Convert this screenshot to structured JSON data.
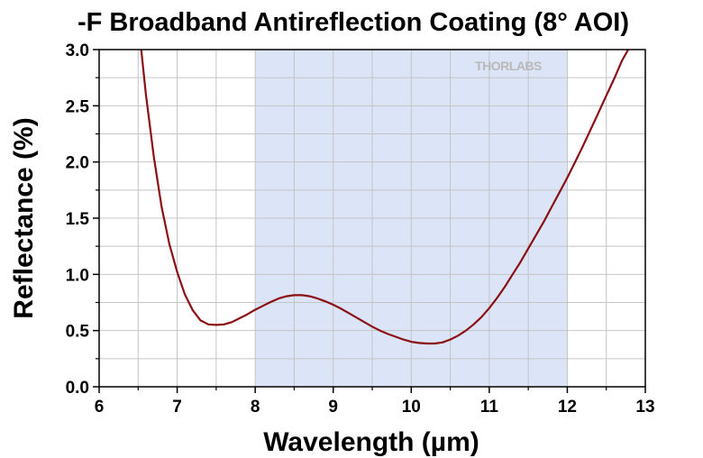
{
  "chart_data": {
    "type": "line",
    "title": "-F Broadband Antireflection Coating (8° AOI)",
    "xlabel": "Wavelength (µm)",
    "ylabel": "Reflectance (%)",
    "xlim": [
      6,
      13
    ],
    "ylim": [
      0.0,
      3.0
    ],
    "xticks": [
      "6",
      "7",
      "8",
      "9",
      "10",
      "11",
      "12",
      "13"
    ],
    "yticks": [
      "0.0",
      "0.5",
      "1.0",
      "1.5",
      "2.0",
      "2.5",
      "3.0"
    ],
    "grid": true,
    "shaded_band": {
      "x_start": 8,
      "x_end": 12,
      "color": "#dce5f7"
    },
    "line_color": "#8b0e14",
    "watermark": "THORLABS",
    "series": [
      {
        "x": [
          6.54,
          6.6,
          6.7,
          6.8,
          6.9,
          7.0,
          7.1,
          7.2,
          7.3,
          7.4,
          7.5,
          7.6,
          7.7,
          7.8,
          7.9,
          8.0,
          8.1,
          8.2,
          8.3,
          8.4,
          8.5,
          8.6,
          8.7,
          8.8,
          8.9,
          9.0,
          9.1,
          9.2,
          9.3,
          9.4,
          9.5,
          9.6,
          9.7,
          9.8,
          9.9,
          10.0,
          10.1,
          10.2,
          10.3,
          10.4,
          10.5,
          10.6,
          10.7,
          10.8,
          10.9,
          11.0,
          11.1,
          11.2,
          11.3,
          11.4,
          11.5,
          11.6,
          11.7,
          11.8,
          11.9,
          12.0,
          12.1,
          12.2,
          12.3,
          12.4,
          12.5,
          12.6,
          12.7,
          12.78
        ],
        "values": [
          3.0,
          2.6,
          2.05,
          1.6,
          1.27,
          1.02,
          0.82,
          0.68,
          0.59,
          0.555,
          0.55,
          0.555,
          0.575,
          0.61,
          0.645,
          0.685,
          0.72,
          0.755,
          0.785,
          0.805,
          0.815,
          0.815,
          0.805,
          0.785,
          0.76,
          0.73,
          0.695,
          0.655,
          0.615,
          0.575,
          0.535,
          0.5,
          0.47,
          0.445,
          0.42,
          0.4,
          0.39,
          0.385,
          0.385,
          0.395,
          0.42,
          0.455,
          0.5,
          0.555,
          0.62,
          0.7,
          0.79,
          0.89,
          1.0,
          1.11,
          1.23,
          1.35,
          1.47,
          1.6,
          1.73,
          1.86,
          2.0,
          2.14,
          2.29,
          2.44,
          2.59,
          2.74,
          2.9,
          3.0
        ]
      }
    ]
  }
}
